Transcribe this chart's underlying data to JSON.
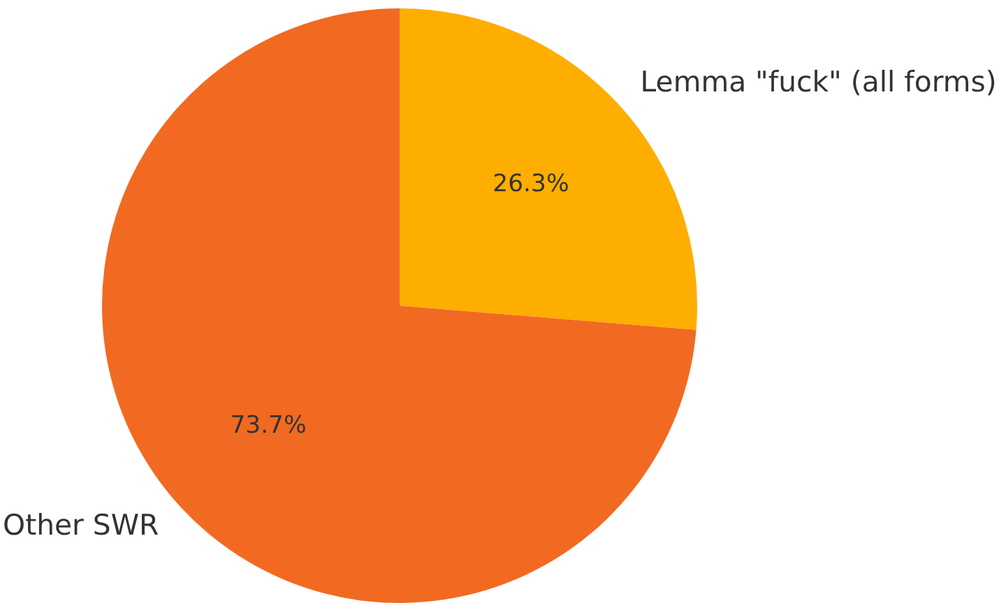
{
  "chart_data": {
    "type": "pie",
    "categories": [
      "Lemma \"fuck\" (all forms)",
      "Other SWR"
    ],
    "values": [
      26.3,
      73.7
    ],
    "colors": [
      "#feae00",
      "#f26a21"
    ],
    "value_labels": [
      "26.3%",
      "73.7%"
    ]
  }
}
